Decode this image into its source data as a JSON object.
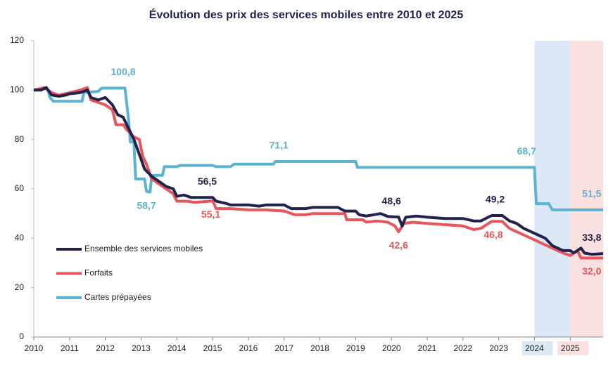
{
  "chart_data": {
    "type": "line",
    "title": "Évolution des prix des services mobiles entre 2010 et 2025",
    "xlim": [
      2010,
      2025.92
    ],
    "xticks": [
      2010,
      2011,
      2012,
      2013,
      2014,
      2015,
      2016,
      2017,
      2018,
      2019,
      2020,
      2021,
      2022,
      2023,
      2024,
      2025
    ],
    "ylim": [
      0,
      120
    ],
    "yticks": [
      0,
      20,
      40,
      60,
      80,
      100,
      120
    ],
    "grid": false,
    "legend": "lower-left",
    "highlights": [
      {
        "from": 2024,
        "to": 2025,
        "color": "#dce8f5"
      },
      {
        "from": 2025,
        "to": 2025.92,
        "color": "#fbe0e0"
      }
    ],
    "series": [
      {
        "name": "Ensemble des services mobiles",
        "color": "#22224e",
        "x": [
          2010,
          2010.2,
          2010.35,
          2010.5,
          2010.7,
          2010.9,
          2011.0,
          2011.3,
          2011.5,
          2011.6,
          2011.8,
          2012.0,
          2012.2,
          2012.35,
          2012.5,
          2012.6,
          2012.8,
          2012.9,
          2013.0,
          2013.1,
          2013.3,
          2013.5,
          2013.7,
          2013.9,
          2014.0,
          2014.2,
          2014.4,
          2014.8,
          2015.0,
          2015.1,
          2015.4,
          2015.5,
          2016.0,
          2016.3,
          2016.5,
          2017.0,
          2017.2,
          2017.6,
          2017.8,
          2018.5,
          2018.7,
          2019.0,
          2019.1,
          2019.3,
          2019.7,
          2019.9,
          2020.2,
          2020.3,
          2020.4,
          2020.7,
          2021.0,
          2021.5,
          2022.0,
          2022.3,
          2022.5,
          2022.8,
          2023.1,
          2023.3,
          2023.5,
          2023.7,
          2024.0,
          2024.3,
          2024.5,
          2024.8,
          2025.0,
          2025.1,
          2025.3,
          2025.4,
          2025.6,
          2025.92
        ],
        "values": [
          100,
          100,
          101,
          98,
          97.5,
          98,
          98.5,
          99,
          100,
          97,
          96,
          97,
          94,
          90,
          89,
          86,
          80,
          76,
          72,
          68,
          65,
          63,
          61,
          60,
          57,
          57.5,
          56.5,
          56.5,
          56.5,
          55,
          54,
          53.5,
          53.5,
          53,
          53.5,
          53.5,
          52,
          52,
          52.5,
          52.5,
          51,
          51,
          49.5,
          49,
          50,
          48.8,
          48.6,
          45,
          48.5,
          49,
          48.5,
          48,
          48,
          47,
          47,
          49.2,
          49.2,
          47,
          46,
          44,
          42,
          40,
          37,
          35,
          35,
          34,
          36,
          34,
          33.5,
          33.8
        ]
      },
      {
        "name": "Forfaits",
        "color": "#e8555a",
        "x": [
          2010,
          2010.3,
          2010.5,
          2010.7,
          2011.0,
          2011.3,
          2011.5,
          2011.6,
          2011.8,
          2012.0,
          2012.2,
          2012.3,
          2012.5,
          2012.6,
          2012.8,
          2012.95,
          2013.05,
          2013.15,
          2013.3,
          2013.5,
          2013.7,
          2013.9,
          2014.0,
          2014.3,
          2014.5,
          2015.0,
          2015.1,
          2015.5,
          2016.0,
          2016.5,
          2017.0,
          2017.3,
          2017.6,
          2017.8,
          2018.7,
          2018.75,
          2019.2,
          2019.3,
          2019.6,
          2019.9,
          2020.1,
          2020.2,
          2020.35,
          2020.6,
          2021.0,
          2021.5,
          2022.0,
          2022.3,
          2022.5,
          2022.8,
          2023.1,
          2023.3,
          2023.6,
          2023.9,
          2024.2,
          2024.5,
          2024.8,
          2025.0,
          2025.2,
          2025.3,
          2025.6,
          2025.92
        ],
        "values": [
          100,
          101,
          99,
          98,
          99,
          100,
          101,
          96,
          95,
          94,
          92,
          86,
          86,
          84,
          81,
          80,
          73,
          70,
          64,
          62,
          60,
          58,
          55,
          55,
          54.5,
          55.1,
          52,
          52,
          51.5,
          51.5,
          51,
          49.5,
          49.5,
          50,
          50,
          47.5,
          47.5,
          46.5,
          47,
          46.5,
          45,
          42.6,
          46,
          46.5,
          46,
          45.5,
          45,
          43.5,
          44,
          46.8,
          46.8,
          44,
          42,
          40,
          38,
          36,
          34,
          33,
          35,
          32,
          32,
          32.0
        ]
      },
      {
        "name": "Cartes prépayées",
        "color": "#5bb3cf",
        "x": [
          2010,
          2010.2,
          2010.3,
          2010.4,
          2010.45,
          2010.55,
          2011.35,
          2011.4,
          2011.8,
          2011.9,
          2012.55,
          2012.65,
          2012.7,
          2012.8,
          2012.85,
          2013.1,
          2013.15,
          2013.25,
          2013.3,
          2013.6,
          2013.65,
          2014.0,
          2014.1,
          2015.0,
          2015.1,
          2015.5,
          2015.6,
          2016.7,
          2016.75,
          2019.0,
          2019.05,
          2024.0,
          2024.05,
          2024.4,
          2024.5,
          2025.92
        ],
        "values": [
          100,
          100,
          101,
          100,
          97,
          95.5,
          95.5,
          99,
          99.5,
          100.8,
          100.8,
          88,
          79,
          79,
          64,
          64,
          59,
          58.7,
          65.5,
          65.5,
          69,
          69,
          69.5,
          69.5,
          69,
          69,
          70,
          70,
          71.1,
          71.1,
          68.7,
          68.7,
          54,
          54,
          51.5,
          51.5
        ]
      }
    ],
    "annotations": [
      {
        "text": "100,8",
        "x": 2012.5,
        "y": 100.8,
        "series": 2,
        "position": "above"
      },
      {
        "text": "58,7",
        "x": 2013.15,
        "y": 58.7,
        "series": 2,
        "position": "below"
      },
      {
        "text": "56,5",
        "x": 2014.85,
        "y": 56.5,
        "series": 0,
        "position": "above"
      },
      {
        "text": "55,1",
        "x": 2014.95,
        "y": 55.1,
        "series": 1,
        "position": "below"
      },
      {
        "text": "71,1",
        "x": 2016.85,
        "y": 71.1,
        "series": 2,
        "position": "above"
      },
      {
        "text": "48,6",
        "x": 2020.0,
        "y": 48.6,
        "series": 0,
        "position": "above"
      },
      {
        "text": "42,6",
        "x": 2020.2,
        "y": 42.6,
        "series": 1,
        "position": "below"
      },
      {
        "text": "49,2",
        "x": 2022.9,
        "y": 49.2,
        "series": 0,
        "position": "above"
      },
      {
        "text": "46,8",
        "x": 2022.85,
        "y": 46.8,
        "series": 1,
        "position": "below"
      },
      {
        "text": "68,7",
        "x": 2023.78,
        "y": 68.7,
        "series": 2,
        "position": "above"
      },
      {
        "text": "51,5",
        "x": 2025.6,
        "y": 51.5,
        "series": 2,
        "position": "above"
      },
      {
        "text": "33,8",
        "x": 2025.6,
        "y": 33.8,
        "series": 0,
        "position": "above"
      },
      {
        "text": "32,0",
        "x": 2025.6,
        "y": 32.0,
        "series": 1,
        "position": "below"
      }
    ]
  }
}
